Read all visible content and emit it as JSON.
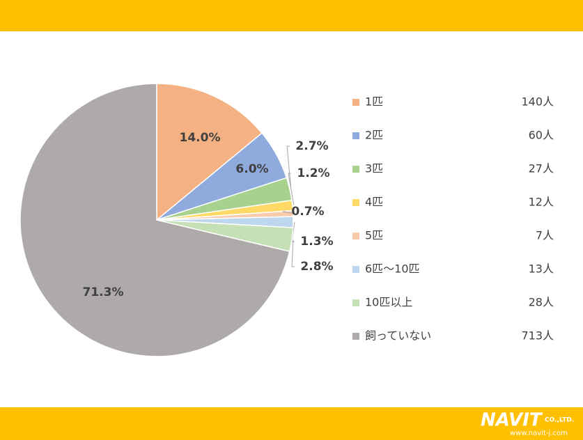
{
  "chart_data": {
    "type": "pie",
    "categories": [
      "1匹",
      "2匹",
      "3匹",
      "4匹",
      "5匹",
      "6匹～10匹",
      "10匹以上",
      "飼っていない"
    ],
    "values": [
      14.0,
      6.0,
      2.7,
      1.2,
      0.7,
      1.3,
      2.8,
      71.3
    ],
    "value_labels": [
      "14.0%",
      "6.0%",
      "2.7%",
      "1.2%",
      "0.7%",
      "1.3%",
      "2.8%",
      "71.3%"
    ],
    "colors": [
      "#f4b183",
      "#8faadc",
      "#a9d18e",
      "#ffd966",
      "#f8cbad",
      "#bdd7ee",
      "#c5e0b4",
      "#aeaaaa"
    ],
    "count_labels": [
      "140人",
      "60人",
      "27人",
      "12人",
      "7人",
      "13人",
      "28人",
      "713人"
    ]
  },
  "footer": {
    "logo": "NAVIT",
    "company": "CO.,LTD.",
    "url": "www.navit-j.com"
  }
}
